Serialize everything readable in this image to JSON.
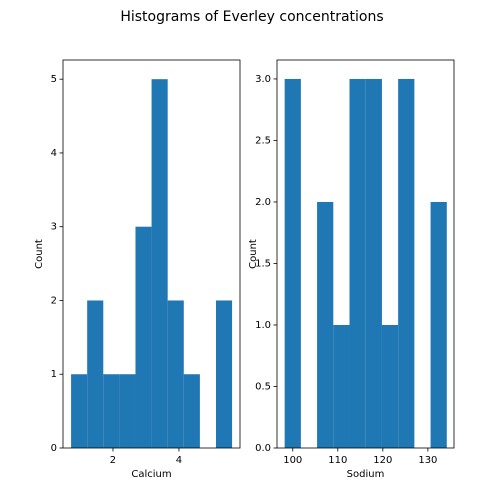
{
  "title": "Histograms of Everley concentrations",
  "chart_data": [
    {
      "type": "histogram",
      "xlabel": "Calcium",
      "ylabel": "Count",
      "color": "#1f77b4",
      "bins": [
        0.73,
        1.218,
        1.706,
        2.194,
        2.682,
        3.17,
        3.658,
        4.146,
        4.634,
        5.122,
        5.61
      ],
      "values": [
        1,
        2,
        1,
        1,
        3,
        5,
        2,
        1,
        0,
        2
      ],
      "xlim": [
        0.485,
        5.85
      ],
      "xticks": [
        2,
        4
      ],
      "ylim": [
        0,
        5.26
      ],
      "yticks": [
        0,
        1,
        2,
        3,
        4,
        5
      ]
    },
    {
      "type": "histogram",
      "xlabel": "Sodium",
      "ylabel": "Count",
      "color": "#1f77b4",
      "bins": [
        98.2,
        101.8,
        105.4,
        109,
        112.6,
        116.2,
        119.8,
        123.4,
        127,
        130.6,
        134.2
      ],
      "values": [
        3,
        0,
        2,
        1,
        3,
        3,
        1,
        3,
        0,
        2
      ],
      "xlim": [
        96.5,
        135.8
      ],
      "xticks": [
        100,
        110,
        120,
        130
      ],
      "ylim": [
        0,
        3.154
      ],
      "yticks": [
        {
          "value": 0,
          "label": "0.0"
        },
        {
          "value": 0.5,
          "label": "0.5"
        },
        {
          "value": 1,
          "label": "1.0"
        },
        {
          "value": 1.5,
          "label": "1.5"
        },
        {
          "value": 2,
          "label": "2.0"
        },
        {
          "value": 2.5,
          "label": "2.5"
        },
        {
          "value": 3,
          "label": "3.0"
        }
      ]
    }
  ]
}
